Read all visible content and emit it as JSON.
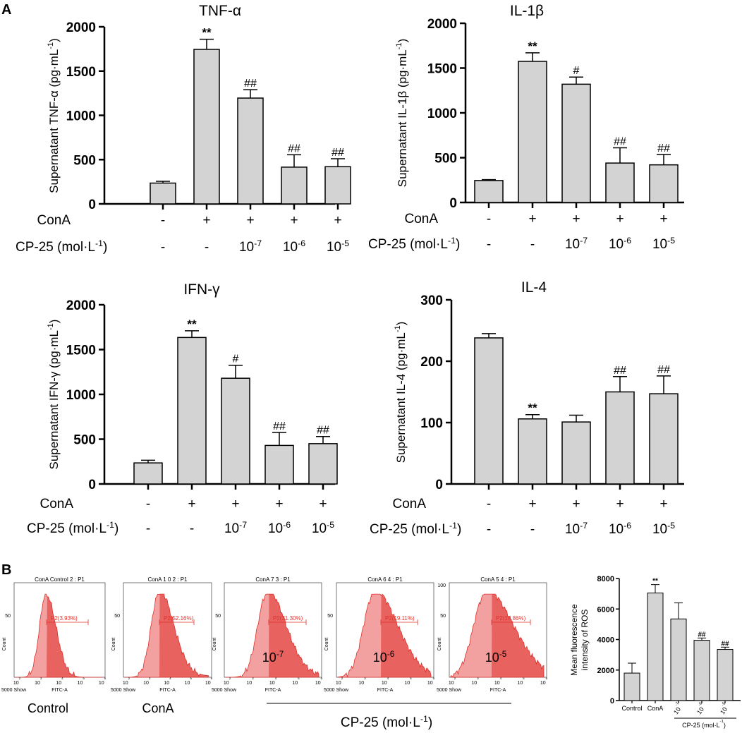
{
  "panels": {
    "a": "A",
    "b": "B"
  },
  "chart_data": [
    {
      "type": "bar",
      "title": "TNF-α",
      "ylabel": "Supernatant TNF-α (pg·mL",
      "ylabel_exp": "-1",
      "ylabel_end": ")",
      "ylim": [
        0,
        2000
      ],
      "yticks": [
        "0",
        "500",
        "1000",
        "1500",
        "2000"
      ],
      "values": [
        235,
        1745,
        1195,
        415,
        420
      ],
      "errors": [
        20,
        115,
        95,
        140,
        90
      ],
      "annotations": [
        "",
        "**",
        "##",
        "##",
        "##"
      ]
    },
    {
      "type": "bar",
      "title": "IL-1β",
      "ylabel": "Supernatant IL-1β (pg·mL",
      "ylabel_exp": "-1",
      "ylabel_end": ")",
      "ylim": [
        0,
        2000
      ],
      "yticks": [
        "0",
        "500",
        "1000",
        "1500",
        "2000"
      ],
      "values": [
        245,
        1575,
        1320,
        440,
        420
      ],
      "errors": [
        10,
        95,
        80,
        170,
        115
      ],
      "annotations": [
        "",
        "**",
        "#",
        "##",
        "##"
      ]
    },
    {
      "type": "bar",
      "title": "IFN-γ",
      "ylabel": "Supernatant IFN-γ (pg·mL",
      "ylabel_exp": "-1",
      "ylabel_end": ")",
      "ylim": [
        0,
        2000
      ],
      "yticks": [
        "0",
        "500",
        "1000",
        "1500",
        "2000"
      ],
      "values": [
        235,
        1635,
        1180,
        430,
        450
      ],
      "errors": [
        30,
        75,
        145,
        145,
        80
      ],
      "annotations": [
        "",
        "**",
        "#",
        "##",
        "##"
      ]
    },
    {
      "type": "bar",
      "title": "IL-4",
      "ylabel": "Supernatant IL-4 (pg·mL",
      "ylabel_exp": "-1",
      "ylabel_end": ")",
      "ylim": [
        0,
        300
      ],
      "yticks": [
        "0",
        "100",
        "200",
        "300"
      ],
      "values": [
        238,
        106,
        101,
        150,
        147
      ],
      "errors": [
        7,
        7,
        11,
        25,
        29
      ],
      "annotations": [
        "",
        "**",
        "",
        "##",
        "##"
      ]
    },
    {
      "type": "bar",
      "title": "",
      "ylabel": "Mean fluorescence intensity of ROS",
      "ylim": [
        0,
        8000
      ],
      "yticks": [
        "0",
        "2000",
        "4000",
        "6000",
        "8000"
      ],
      "categories": [
        "Control",
        "ConA",
        "10",
        "10",
        "10"
      ],
      "category_exps": [
        "",
        "",
        "-7",
        "-6",
        "-5"
      ],
      "xgroup_label": "CP-25 (mol·L",
      "xgroup_exp": "-1",
      "xgroup_end": ")",
      "values": [
        1800,
        7050,
        5350,
        3950,
        3350
      ],
      "errors": [
        650,
        550,
        1050,
        150,
        150
      ],
      "annotations": [
        "",
        "**",
        "",
        "##",
        "##"
      ]
    }
  ],
  "conditions": {
    "cona_label": "ConA",
    "cona_values": [
      "-",
      "+",
      "+",
      "+",
      "+"
    ],
    "cp_label": "CP-25 (mol·L",
    "cp_exp": "-1",
    "cp_end": ")",
    "cp_values": [
      "-",
      "-",
      "10",
      "10",
      "10"
    ],
    "cp_exps": [
      "",
      "",
      "-7",
      "-6",
      "-5"
    ]
  },
  "flow": {
    "panels": [
      {
        "title": "ConA Control 2 : P1",
        "gate": "P2(3.93%)",
        "label": "Control"
      },
      {
        "title": "ConA 1 0 2 : P1",
        "gate": "P2(52.16%)",
        "label": "ConA"
      },
      {
        "title": "ConA 7 3 : P1",
        "gate": "P2(31.30%)",
        "label": "10",
        "label_exp": "-7"
      },
      {
        "title": "ConA 6 4 : P1",
        "gate": "P2(19.11%)",
        "label": "10",
        "label_exp": "-6"
      },
      {
        "title": "ConA 5 4 : P1",
        "gate": "P2(15.86%)",
        "label": "10",
        "label_exp": "-5"
      }
    ],
    "ytick_mid": "50",
    "ytick_top": "100",
    "ytick_top_prefix": "",
    "ylabel": "Count",
    "xlabel": "FITC-A",
    "xticks": [
      "10",
      "10",
      "10",
      "10",
      "10"
    ],
    "xtick_exps": [
      "2",
      "3",
      "4",
      "5",
      "6"
    ],
    "corner": "5000 Show",
    "group_label": "CP-25 (mol·L",
    "group_exp": "-1",
    "group_end": ")",
    "hist_color": "#e0302a",
    "fill_color": "#f2a0a0"
  },
  "colors": {
    "bar": "#d3d3d3",
    "axis": "#000000"
  }
}
